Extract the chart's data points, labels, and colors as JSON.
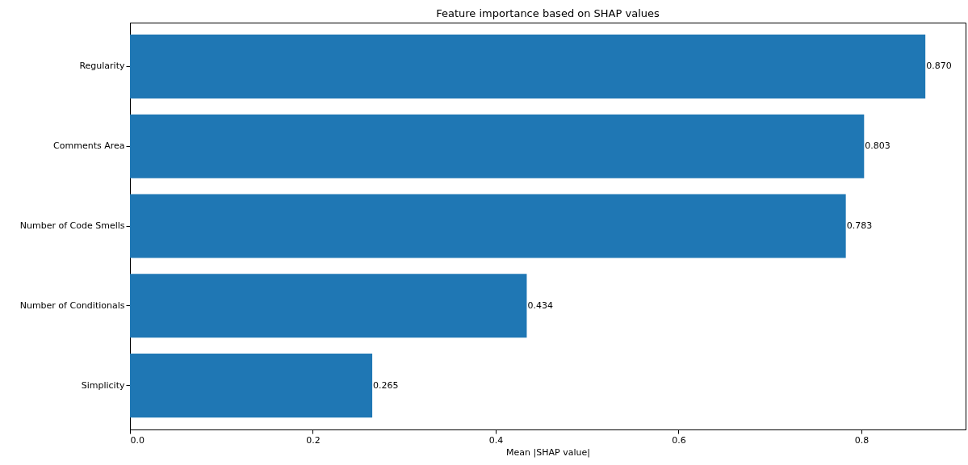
{
  "chart_data": {
    "type": "bar",
    "orientation": "horizontal",
    "title": "Feature importance based on SHAP values",
    "xlabel": "Mean |SHAP value|",
    "categories": [
      "Regularity",
      "Comments Area",
      "Number of Code Smells",
      "Number of Conditionals",
      "Simplicity"
    ],
    "values": [
      0.87,
      0.803,
      0.783,
      0.434,
      0.265
    ],
    "value_labels": [
      "0.870",
      "0.803",
      "0.783",
      "0.434",
      "0.265"
    ],
    "color": "#1f77b4",
    "xlim": [
      0,
      0.914
    ],
    "xticks": [
      {
        "value": 0,
        "label": "0.0"
      },
      {
        "value": 0.2,
        "label": "0.2"
      },
      {
        "value": 0.4,
        "label": "0.4"
      },
      {
        "value": 0.6,
        "label": "0.6"
      },
      {
        "value": 0.8,
        "label": "0.8"
      }
    ],
    "grid": false
  }
}
